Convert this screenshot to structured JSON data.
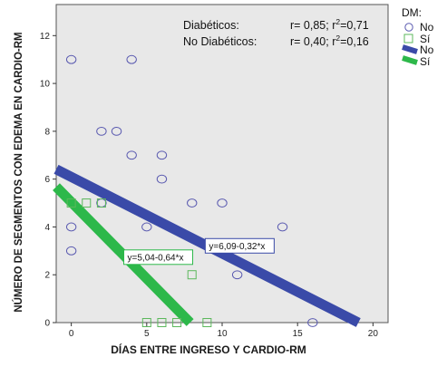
{
  "chart_data": {
    "type": "scatter",
    "xlabel": "DÍAS ENTRE INGRESO Y CARDIO-RM",
    "ylabel": "NÚMERO DE SEGMENTOS CON EDEMA EN CARDIO-RM",
    "xlim": [
      -1,
      21
    ],
    "ylim": [
      0,
      13.3
    ],
    "xticks": [
      0,
      5,
      10,
      15,
      20
    ],
    "yticks": [
      0,
      2,
      4,
      6,
      8,
      10,
      12
    ],
    "grid": false,
    "background": "#e8e8e8",
    "legend": {
      "title": "DM:",
      "position": "right",
      "entries": [
        "No",
        "Sí",
        "No",
        "Sí"
      ]
    },
    "annotations": {
      "diab_label": "Diabéticos:",
      "diab_r": "r= 0,85; r",
      "diab_r2": "2",
      "diab_val": "=0,71",
      "nodiab_label": "No Diabéticos:",
      "nodiab_r": "r= 0,40; r",
      "nodiab_r2": "2",
      "nodiab_val": "=0,16"
    },
    "series": [
      {
        "name": "No",
        "marker": "circle",
        "color": "#5a5ab0",
        "points": [
          [
            0,
            11
          ],
          [
            4,
            11
          ],
          [
            2,
            8
          ],
          [
            3,
            8
          ],
          [
            4,
            7
          ],
          [
            6,
            7
          ],
          [
            6,
            6
          ],
          [
            2,
            5
          ],
          [
            8,
            5
          ],
          [
            10,
            5
          ],
          [
            0,
            4
          ],
          [
            5,
            4
          ],
          [
            14,
            4
          ],
          [
            0,
            3
          ],
          [
            11,
            2
          ],
          [
            16,
            0
          ]
        ]
      },
      {
        "name": "Sí",
        "marker": "square",
        "color": "#5cb85c",
        "points": [
          [
            0,
            5
          ],
          [
            1,
            5
          ],
          [
            2,
            5
          ],
          [
            8,
            2
          ],
          [
            5,
            0
          ],
          [
            6,
            0
          ],
          [
            7,
            0
          ],
          [
            9,
            0
          ]
        ]
      }
    ],
    "fit_lines": [
      {
        "name": "No",
        "color": "#3a4aa8",
        "intercept": 6.09,
        "slope": -0.32,
        "label": "y=6,09-0,32*x",
        "label_x": 9.0
      },
      {
        "name": "Sí",
        "color": "#2db84a",
        "intercept": 5.04,
        "slope": -0.64,
        "label": "y=5,04-0,64*x",
        "label_x": 3.6
      }
    ]
  }
}
